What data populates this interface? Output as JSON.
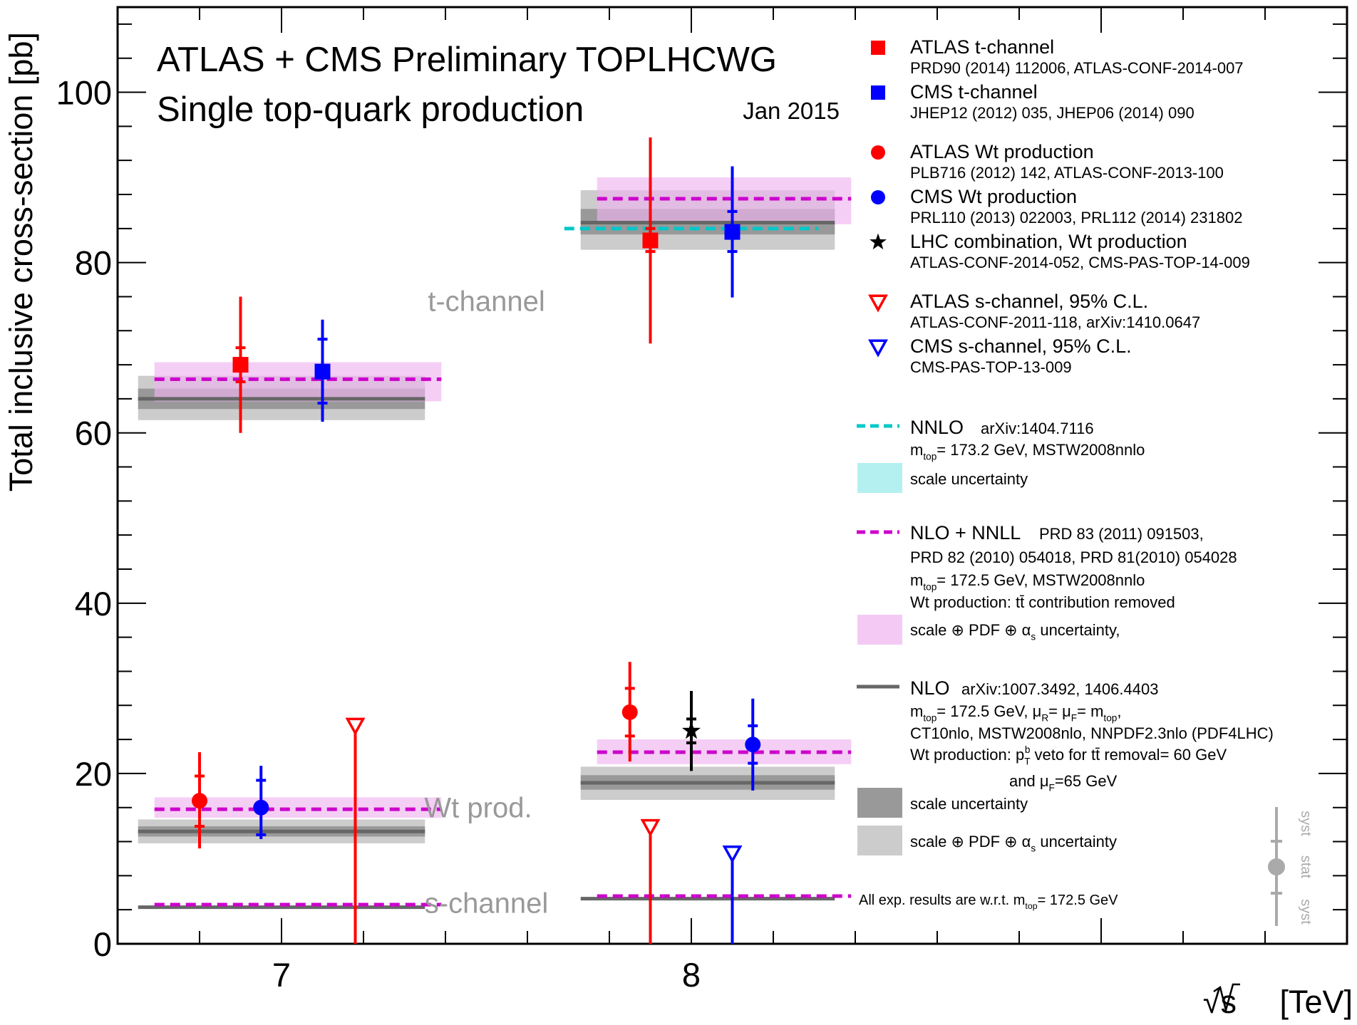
{
  "chart_data": {
    "type": "scatter",
    "title": "ATLAS + CMS Preliminary TOPLHCWG",
    "subtitle": "Single top-quark production",
    "date": "Jan 2015",
    "xlabel_sqrt": "√s",
    "xlabel_unit": "[TeV]",
    "ylabel": "Total inclusive cross-section [pb]",
    "xlim": [
      6.6,
      9.6
    ],
    "ylim": [
      0,
      110
    ],
    "x_ticks": [
      7,
      8
    ],
    "y_ticks": [
      0,
      20,
      40,
      60,
      80,
      100
    ],
    "colors": {
      "atlas": "#ff0000",
      "cms": "#0000ff",
      "lhc": "#000000",
      "nnlo": "#00c8c8",
      "nnll": "#cc00cc",
      "nnll_band": "#f0b4f0",
      "nnlo_band": "#b4f0f0",
      "nlo": "#666666",
      "nlo_scale_band": "#999999",
      "nlo_total_band": "#cccccc",
      "region_label": "#999999"
    },
    "region_labels": [
      {
        "text": "t-channel",
        "x": 7.5,
        "y": 75.5
      },
      {
        "text": "Wt prod.",
        "x": 7.48,
        "y": 16.0
      },
      {
        "text": "s-channel",
        "x": 7.5,
        "y": 4.8
      }
    ],
    "theory_bands": [
      {
        "name": "t-channel 7 TeV",
        "x_range": [
          6.65,
          7.35
        ],
        "nlo": 64.0,
        "nlo_scale": [
          62.8,
          65.2
        ],
        "nlo_total": [
          61.5,
          66.7
        ],
        "nnll": 66.3,
        "nnll_band": [
          63.7,
          68.3
        ]
      },
      {
        "name": "t-channel 8 TeV",
        "x_range": [
          7.73,
          8.35
        ],
        "nlo": 84.7,
        "nlo_scale": [
          83.3,
          86.3
        ],
        "nlo_total": [
          81.5,
          88.5
        ],
        "nnll": 87.5,
        "nnll_band": [
          84.5,
          90.0
        ],
        "nnlo": 84.0
      },
      {
        "name": "Wt 7 TeV",
        "x_range": [
          6.65,
          7.35
        ],
        "nlo": 13.2,
        "nlo_scale": [
          12.6,
          13.8
        ],
        "nlo_total": [
          11.8,
          14.6
        ],
        "nnll": 15.8,
        "nnll_band": [
          14.8,
          17.2
        ]
      },
      {
        "name": "Wt 8 TeV",
        "x_range": [
          7.73,
          8.35
        ],
        "nlo": 18.9,
        "nlo_scale": [
          18.1,
          19.8
        ],
        "nlo_total": [
          16.9,
          20.8
        ],
        "nnll": 22.5,
        "nnll_band": [
          21.1,
          24.0
        ]
      },
      {
        "name": "s-channel 7 TeV",
        "x_range": [
          6.65,
          7.35
        ],
        "nlo": 4.3,
        "nnll": 4.6
      },
      {
        "name": "s-channel 8 TeV",
        "x_range": [
          7.73,
          8.35
        ],
        "nlo": 5.3,
        "nnll": 5.6
      }
    ],
    "measurements": [
      {
        "name": "ATLAS t-channel 7 TeV",
        "marker": "square",
        "color": "atlas",
        "x": 6.9,
        "y": 68.0,
        "stat": [
          66.0,
          70.0
        ],
        "total": [
          60.0,
          76.0
        ]
      },
      {
        "name": "CMS t-channel 7 TeV",
        "marker": "square",
        "color": "cms",
        "x": 7.1,
        "y": 67.2,
        "stat": [
          63.5,
          71.0
        ],
        "total": [
          61.3,
          73.3
        ]
      },
      {
        "name": "ATLAS t-channel 8 TeV",
        "marker": "square",
        "color": "atlas",
        "x": 7.9,
        "y": 82.6,
        "stat": [
          81.3,
          84.0
        ],
        "total": [
          70.5,
          94.7
        ]
      },
      {
        "name": "CMS t-channel 8 TeV",
        "marker": "square",
        "color": "cms",
        "x": 8.1,
        "y": 83.6,
        "stat": [
          81.3,
          86.0
        ],
        "total": [
          75.9,
          91.3
        ]
      },
      {
        "name": "ATLAS Wt 7 TeV",
        "marker": "circle",
        "color": "atlas",
        "x": 6.8,
        "y": 16.8,
        "stat": [
          13.8,
          19.7
        ],
        "total": [
          11.2,
          22.5
        ]
      },
      {
        "name": "CMS Wt 7 TeV",
        "marker": "circle",
        "color": "cms",
        "x": 6.95,
        "y": 16.0,
        "stat": [
          12.8,
          19.2
        ],
        "total": [
          12.3,
          20.9
        ]
      },
      {
        "name": "ATLAS Wt 8 TeV",
        "marker": "circle",
        "color": "atlas",
        "x": 7.85,
        "y": 27.2,
        "stat": [
          24.4,
          30.0
        ],
        "total": [
          21.4,
          33.1
        ]
      },
      {
        "name": "LHC combination Wt 8 TeV",
        "marker": "star",
        "color": "lhc",
        "x": 8.0,
        "y": 25.0,
        "stat": [
          23.6,
          26.4
        ],
        "total": [
          20.3,
          29.7
        ]
      },
      {
        "name": "CMS Wt 8 TeV",
        "marker": "circle",
        "color": "cms",
        "x": 8.15,
        "y": 23.4,
        "stat": [
          21.2,
          25.6
        ],
        "total": [
          18.0,
          28.8
        ]
      }
    ],
    "limits": [
      {
        "name": "ATLAS s-channel 7 TeV 95% C.L.",
        "color": "atlas",
        "x": 7.18,
        "y": 26.5
      },
      {
        "name": "ATLAS s-channel 8 TeV 95% C.L.",
        "color": "atlas",
        "x": 7.9,
        "y": 14.6
      },
      {
        "name": "CMS s-channel 8 TeV 95% C.L.",
        "color": "cms",
        "x": 8.1,
        "y": 11.5
      }
    ],
    "legend": [
      {
        "symbol": "square",
        "color": "atlas",
        "label": "ATLAS t-channel",
        "ref": "PRD90 (2014) 112006, ATLAS-CONF-2014-007"
      },
      {
        "symbol": "square",
        "color": "cms",
        "label": "CMS t-channel",
        "ref": "JHEP12 (2012) 035, JHEP06 (2014) 090"
      },
      {
        "symbol": "circle",
        "color": "atlas",
        "label": "ATLAS Wt production",
        "ref": "PLB716 (2012) 142, ATLAS-CONF-2013-100"
      },
      {
        "symbol": "circle",
        "color": "cms",
        "label": "CMS Wt production",
        "ref": "PRL110 (2013) 022003, PRL112 (2014) 231802"
      },
      {
        "symbol": "star",
        "color": "lhc",
        "label": "LHC combination,  Wt production",
        "ref": "ATLAS-CONF-2014-052, CMS-PAS-TOP-14-009"
      },
      {
        "symbol": "triangle",
        "color": "atlas",
        "label": "ATLAS s-channel, 95% C.L.",
        "ref": "ATLAS-CONF-2011-118, arXiv:1410.0647"
      },
      {
        "symbol": "triangle",
        "color": "cms",
        "label": "CMS s-channel, 95% C.L.",
        "ref": "CMS-PAS-TOP-13-009"
      }
    ],
    "legend_theory": {
      "nnlo_label": "NNLO",
      "nnlo_ref": "arXiv:1404.7116",
      "nnlo_mass": "m_top= 173.2 GeV, MSTW2008nnlo",
      "nnlo_band_label": "scale uncertainty",
      "nnll_label": "NLO + NNLL",
      "nnll_ref1": "PRD 83 (2011) 091503,",
      "nnll_ref2": "PRD 82 (2010) 054018, PRD 81(2010) 054028",
      "nnll_mass": "m_top= 172.5 GeV, MSTW2008nnlo",
      "nnll_wt_note": "Wt production: tt̄ contribution removed",
      "nnll_band_label": "scale ⊕ PDF ⊕ α_s uncertainty,",
      "nlo_label": "NLO",
      "nlo_ref": "arXiv:1007.3492, 1406.4403",
      "nlo_mass": "m_top= 172.5 GeV, μ_R= μ_F= m_top,",
      "nlo_pdf": "CT10nlo, MSTW2008nlo, NNPDF2.3nlo (PDF4LHC)",
      "nlo_wt_note": "Wt production: p_T^b veto for tt̄ removal= 60 GeV",
      "nlo_wt_note2": "and μ_F=65 GeV",
      "nlo_scale_label": "scale uncertainty",
      "nlo_total_label": "scale ⊕ PDF ⊕ α_s uncertainty"
    },
    "footnote": "All exp. results are w.r.t. m_top= 172.5 GeV",
    "key_labels": {
      "syst_top": "syst",
      "stat": "stat",
      "syst_bottom": "syst"
    }
  }
}
